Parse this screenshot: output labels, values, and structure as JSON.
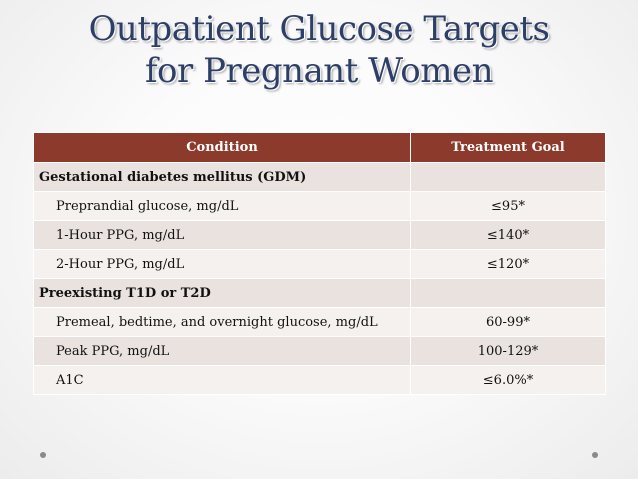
{
  "slide": {
    "title_line1": "Outpatient Glucose Targets",
    "title_line2": "for Pregnant Women"
  },
  "table": {
    "headers": [
      "Condition",
      "Treatment Goal"
    ],
    "rows": [
      {
        "condition": "Gestational diabetes mellitus (GDM)",
        "goal": "",
        "type": "section"
      },
      {
        "condition": "Preprandial glucose, mg/dL",
        "goal": "≤95*",
        "type": "item"
      },
      {
        "condition": "1-Hour PPG, mg/dL",
        "goal": "≤140*",
        "type": "item"
      },
      {
        "condition": "2-Hour PPG, mg/dL",
        "goal": "≤120*",
        "type": "item"
      },
      {
        "condition": "Preexisting T1D or T2D",
        "goal": "",
        "type": "section"
      },
      {
        "condition": "Premeal, bedtime, and overnight glucose, mg/dL",
        "goal": "60-99*",
        "type": "item"
      },
      {
        "condition": "Peak PPG, mg/dL",
        "goal": "100-129*",
        "type": "item"
      },
      {
        "condition": "A1C",
        "goal": "≤6.0%*",
        "type": "item"
      }
    ]
  },
  "colors": {
    "title": "#2d3f67",
    "header_bg": "#8b3a2b",
    "row_odd": "#e9e2df",
    "row_even": "#f5f1ef"
  }
}
